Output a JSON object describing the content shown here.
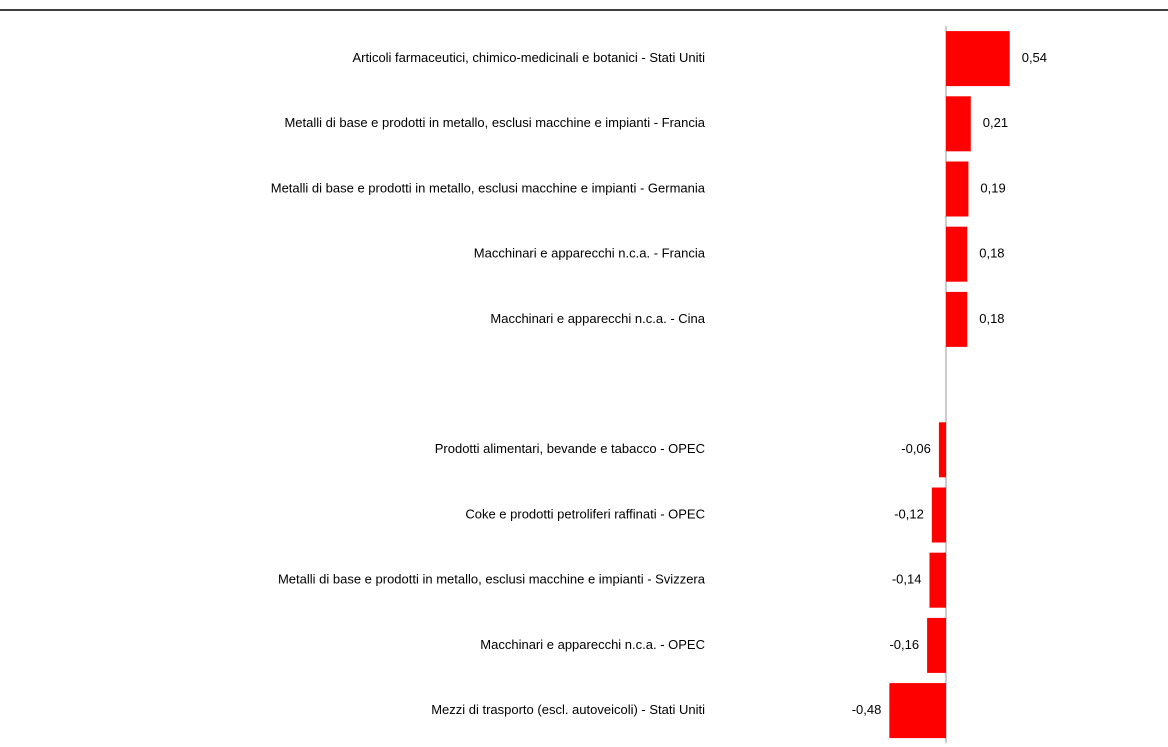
{
  "chart_data": {
    "type": "barh",
    "categories": [
      "Articoli farmaceutici, chimico-medicinali e botanici - Stati Uniti",
      "Metalli di base e prodotti in metallo, esclusi macchine e impianti - Francia",
      "Metalli di base e prodotti in metallo, esclusi macchine e impianti - Germania",
      "Macchinari e apparecchi n.c.a. - Francia",
      "Macchinari e apparecchi n.c.a. - Cina",
      null,
      "Prodotti alimentari, bevande e tabacco - OPEC",
      "Coke e prodotti petroliferi raffinati - OPEC",
      "Metalli di base e prodotti in metallo, esclusi macchine e impianti - Svizzera",
      "Macchinari e apparecchi n.c.a. - OPEC",
      "Mezzi di trasporto (escl. autoveicoli) - Stati Uniti"
    ],
    "values": [
      0.54,
      0.21,
      0.19,
      0.18,
      0.18,
      null,
      -0.06,
      -0.12,
      -0.14,
      -0.16,
      -0.48
    ],
    "value_labels": [
      "0,54",
      "0,21",
      "0,19",
      "0,18",
      "0,18",
      null,
      "-0,06",
      "-0,12",
      "-0,14",
      "-0,16",
      "-0,48"
    ],
    "color": "#ff0000"
  }
}
